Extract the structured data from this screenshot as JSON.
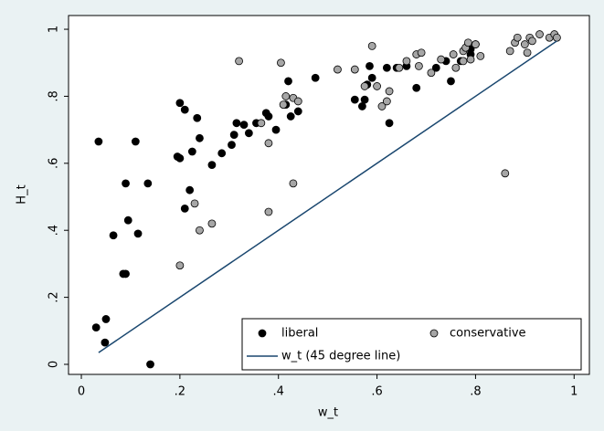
{
  "chart_data": {
    "type": "scatter",
    "x_label": "w_t",
    "y_label": "H_t",
    "xlim": [
      -0.026,
      1.031
    ],
    "ylim": [
      -0.03,
      1.041
    ],
    "xticks": [
      0,
      {
        "value": 0.2,
        "label": ".2"
      },
      {
        "value": 0.4,
        "label": ".4"
      },
      {
        "value": 0.6,
        "label": ".6"
      },
      {
        "value": 0.8,
        "label": ".8"
      },
      1
    ],
    "yticks": [
      0,
      {
        "value": 0.2,
        "label": ".2"
      },
      {
        "value": 0.4,
        "label": ".4"
      },
      {
        "value": 0.6,
        "label": ".6"
      },
      {
        "value": 0.8,
        "label": ".8"
      },
      1
    ],
    "legend": "bottom-right",
    "series": [
      {
        "name": "liberal",
        "type": "scatter",
        "color": "#000000",
        "x": [
          0.03,
          0.035,
          0.048,
          0.05,
          0.065,
          0.085,
          0.09,
          0.09,
          0.095,
          0.11,
          0.115,
          0.135,
          0.14,
          0.2,
          0.195,
          0.2,
          0.21,
          0.21,
          0.22,
          0.225,
          0.235,
          0.24,
          0.265,
          0.285,
          0.305,
          0.31,
          0.315,
          0.33,
          0.34,
          0.355,
          0.375,
          0.38,
          0.395,
          0.415,
          0.42,
          0.425,
          0.44,
          0.475,
          0.555,
          0.57,
          0.575,
          0.58,
          0.585,
          0.59,
          0.62,
          0.625,
          0.64,
          0.66,
          0.68,
          0.72,
          0.74,
          0.75,
          0.77,
          0.79,
          0.79,
          0.8
        ],
        "values": [
          0.11,
          0.665,
          0.065,
          0.135,
          0.385,
          0.27,
          0.27,
          0.54,
          0.43,
          0.665,
          0.39,
          0.54,
          0,
          0.78,
          0.62,
          0.615,
          0.76,
          0.465,
          0.52,
          0.635,
          0.735,
          0.675,
          0.595,
          0.63,
          0.655,
          0.685,
          0.72,
          0.715,
          0.69,
          0.72,
          0.75,
          0.74,
          0.7,
          0.775,
          0.845,
          0.74,
          0.755,
          0.855,
          0.79,
          0.77,
          0.79,
          0.835,
          0.89,
          0.855,
          0.885,
          0.72,
          0.885,
          0.89,
          0.825,
          0.885,
          0.905,
          0.845,
          0.905,
          0.925,
          0.94,
          0.955
        ]
      },
      {
        "name": "conservative",
        "type": "scatter",
        "color": "#a6a6a6",
        "x": [
          0.2,
          0.23,
          0.24,
          0.265,
          0.32,
          0.365,
          0.38,
          0.38,
          0.405,
          0.41,
          0.415,
          0.43,
          0.44,
          0.43,
          0.52,
          0.555,
          0.575,
          0.59,
          0.6,
          0.61,
          0.62,
          0.625,
          0.645,
          0.66,
          0.68,
          0.69,
          0.685,
          0.71,
          0.73,
          0.755,
          0.76,
          0.775,
          0.775,
          0.78,
          0.785,
          0.79,
          0.8,
          0.81,
          0.86,
          0.87,
          0.88,
          0.885,
          0.9,
          0.905,
          0.91,
          0.915,
          0.93,
          0.95,
          0.96,
          0.965
        ],
        "values": [
          0.295,
          0.48,
          0.4,
          0.42,
          0.905,
          0.72,
          0.66,
          0.455,
          0.9,
          0.775,
          0.8,
          0.795,
          0.785,
          0.54,
          0.88,
          0.88,
          0.83,
          0.95,
          0.83,
          0.77,
          0.785,
          0.815,
          0.885,
          0.905,
          0.925,
          0.93,
          0.89,
          0.87,
          0.91,
          0.925,
          0.885,
          0.935,
          0.905,
          0.945,
          0.96,
          0.91,
          0.955,
          0.92,
          0.57,
          0.935,
          0.96,
          0.975,
          0.955,
          0.93,
          0.975,
          0.965,
          0.985,
          0.975,
          0.985,
          0.975
        ]
      },
      {
        "name": "w_t (45 degree line)",
        "type": "line",
        "color": "#1a476f",
        "x": [
          0.035,
          0.965
        ],
        "values": [
          0.035,
          0.965
        ]
      }
    ]
  }
}
